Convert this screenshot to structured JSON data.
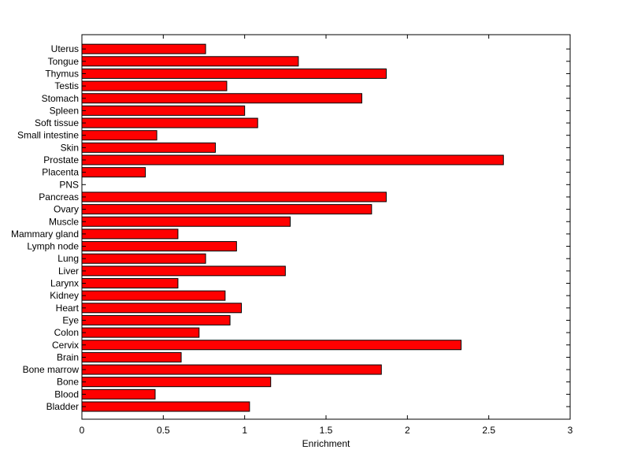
{
  "chart_data": {
    "type": "bar",
    "orientation": "horizontal",
    "categories": [
      "Bladder",
      "Blood",
      "Bone",
      "Bone marrow",
      "Brain",
      "Cervix",
      "Colon",
      "Eye",
      "Heart",
      "Kidney",
      "Larynx",
      "Liver",
      "Lung",
      "Lymph node",
      "Mammary gland",
      "Muscle",
      "Ovary",
      "Pancreas",
      "PNS",
      "Placenta",
      "Prostate",
      "Skin",
      "Small intestine",
      "Soft tissue",
      "Spleen",
      "Stomach",
      "Testis",
      "Thymus",
      "Tongue",
      "Uterus"
    ],
    "values": [
      1.03,
      0.45,
      1.16,
      1.84,
      0.61,
      2.33,
      0.72,
      0.91,
      0.98,
      0.88,
      0.59,
      1.25,
      0.76,
      0.95,
      0.59,
      1.28,
      1.78,
      1.87,
      0.0,
      0.39,
      2.59,
      0.82,
      0.46,
      1.08,
      1.0,
      1.72,
      0.89,
      1.87,
      1.33,
      0.76
    ],
    "xlabel": "Enrichment",
    "ylabel": "",
    "title": "",
    "xlim": [
      0,
      3
    ],
    "xticks": [
      0,
      0.5,
      1,
      1.5,
      2,
      2.5,
      3
    ],
    "xtick_labels": [
      "0",
      "0.5",
      "1",
      "1.5",
      "2",
      "2.5",
      "3"
    ],
    "grid": false,
    "legend": "none",
    "bar_color": "#ff0000",
    "bar_edge_color": "#000000"
  }
}
